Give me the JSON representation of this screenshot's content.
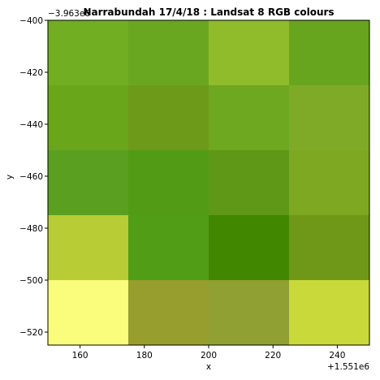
{
  "chart_data": {
    "type": "heatmap",
    "title": "Narrabundah 17/4/18 : Landsat 8 RGB colours",
    "xlabel": "x",
    "ylabel": "y",
    "x_offset_label": "+1.551e6",
    "y_offset_label": "−3.963e6",
    "xlim": [
      150,
      250
    ],
    "ylim": [
      -525,
      -400
    ],
    "x_ticks": [
      160,
      180,
      200,
      220,
      240
    ],
    "x_tick_labels": [
      "160",
      "180",
      "200",
      "220",
      "240"
    ],
    "y_ticks": [
      -400,
      -420,
      -440,
      -460,
      -480,
      -500,
      -520
    ],
    "y_tick_labels": [
      "−400",
      "−420",
      "−440",
      "−460",
      "−480",
      "−500",
      "−520"
    ],
    "x_edges": [
      150,
      175,
      200,
      225,
      250
    ],
    "y_edges": [
      -400,
      -425,
      -450,
      -475,
      -500,
      -525
    ],
    "pixel_colors": [
      [
        "#71ae22",
        "#6aa720",
        "#90bc2c",
        "#68a51e"
      ],
      [
        "#6aa61a",
        "#6e9a19",
        "#6ea720",
        "#7faa28"
      ],
      [
        "#5b9f20",
        "#519c14",
        "#5f9817",
        "#7fa822"
      ],
      [
        "#b8cc36",
        "#529d16",
        "#418800",
        "#709818"
      ],
      [
        "#fafd7b",
        "#979e2e",
        "#91a032",
        "#cad93a"
      ]
    ]
  }
}
